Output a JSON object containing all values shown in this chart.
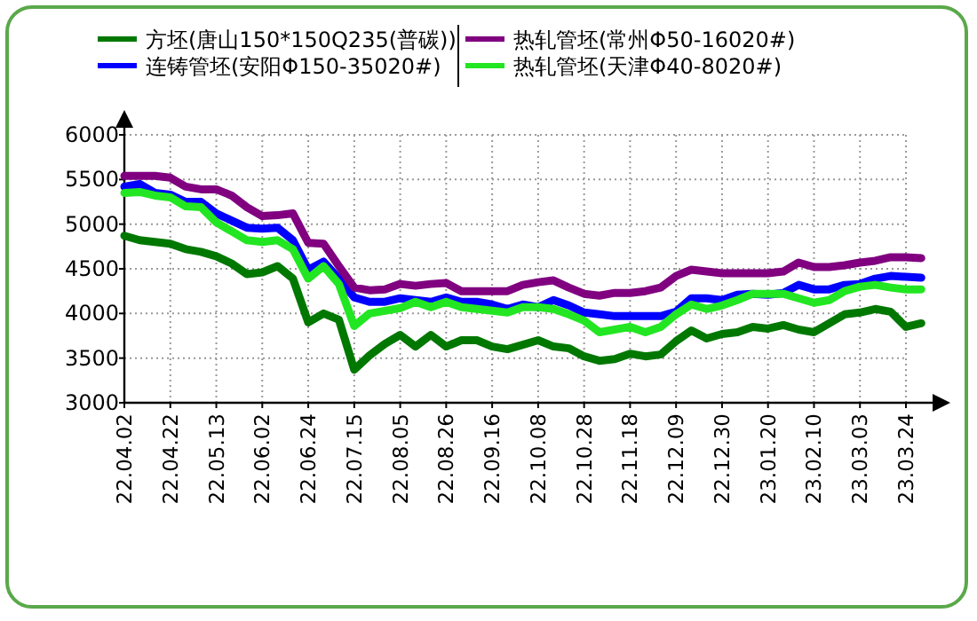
{
  "chart_data": {
    "type": "line",
    "categories": [
      "22.04.02",
      null,
      null,
      "22.04.22",
      null,
      null,
      "22.05.13",
      null,
      null,
      "22.06.02",
      null,
      null,
      "22.06.24",
      null,
      null,
      "22.07.15",
      null,
      null,
      "22.08.05",
      null,
      null,
      "22.08.26",
      null,
      null,
      "22.09.16",
      null,
      null,
      "22.10.08",
      null,
      null,
      "22.10.28",
      null,
      null,
      "22.11.18",
      null,
      null,
      "22.12.09",
      null,
      null,
      "22.12.30",
      null,
      null,
      "23.01.20",
      null,
      null,
      "23.02.10",
      null,
      null,
      "23.03.03",
      null,
      null,
      "23.03.24",
      null
    ],
    "series": [
      {
        "name": "方坯(唐山150*150Q235(普碳))",
        "color": "#007800",
        "values": [
          4870,
          4820,
          4800,
          4780,
          4720,
          4690,
          4640,
          4560,
          4440,
          4460,
          4530,
          4390,
          3900,
          4000,
          3930,
          3370,
          3530,
          3660,
          3760,
          3630,
          3760,
          3630,
          3700,
          3700,
          3630,
          3600,
          3650,
          3700,
          3630,
          3610,
          3520,
          3470,
          3490,
          3550,
          3520,
          3540,
          3690,
          3810,
          3720,
          3770,
          3790,
          3850,
          3830,
          3870,
          3820,
          3790,
          3890,
          3990,
          4010,
          4050,
          4020,
          3850,
          3890
        ]
      },
      {
        "name": "连铸管坯(安阳Φ150-35020#)",
        "color": "#0000ff",
        "values": [
          5420,
          5450,
          5350,
          5330,
          5250,
          5250,
          5120,
          5040,
          4960,
          4950,
          4960,
          4820,
          4490,
          4580,
          4390,
          4180,
          4130,
          4130,
          4170,
          4150,
          4130,
          4180,
          4130,
          4130,
          4100,
          4050,
          4100,
          4070,
          4150,
          4090,
          4010,
          3990,
          3970,
          3970,
          3970,
          3970,
          4020,
          4170,
          4170,
          4150,
          4210,
          4220,
          4210,
          4230,
          4320,
          4270,
          4270,
          4320,
          4330,
          4390,
          4420,
          4410,
          4400
        ]
      },
      {
        "name": "热轧管坯(常州Φ50-16020#)",
        "color": "#800080",
        "values": [
          5540,
          5540,
          5540,
          5520,
          5420,
          5390,
          5390,
          5320,
          5190,
          5090,
          5100,
          5120,
          4790,
          4780,
          4530,
          4290,
          4260,
          4270,
          4330,
          4310,
          4330,
          4340,
          4250,
          4250,
          4250,
          4250,
          4320,
          4350,
          4370,
          4290,
          4220,
          4200,
          4230,
          4230,
          4250,
          4290,
          4420,
          4490,
          4470,
          4450,
          4450,
          4450,
          4450,
          4470,
          4570,
          4520,
          4520,
          4540,
          4570,
          4590,
          4630,
          4630,
          4620
        ]
      },
      {
        "name": "热轧管坯(天津Φ40-8020#)",
        "color": "#22e622",
        "values": [
          5350,
          5360,
          5320,
          5300,
          5200,
          5190,
          5020,
          4920,
          4820,
          4800,
          4820,
          4720,
          4390,
          4530,
          4330,
          3860,
          4000,
          4030,
          4060,
          4130,
          4070,
          4130,
          4070,
          4050,
          4030,
          4010,
          4070,
          4070,
          4050,
          3990,
          3920,
          3790,
          3820,
          3850,
          3790,
          3850,
          3990,
          4100,
          4050,
          4090,
          4150,
          4220,
          4220,
          4220,
          4170,
          4120,
          4150,
          4250,
          4300,
          4320,
          4290,
          4270,
          4270
        ]
      }
    ],
    "ylim": [
      3000,
      6000
    ],
    "yticks": [
      3000,
      3500,
      4000,
      4500,
      5000,
      5500,
      6000
    ],
    "grid": true,
    "legend": "top",
    "marker": "none",
    "line_style": "solid"
  }
}
